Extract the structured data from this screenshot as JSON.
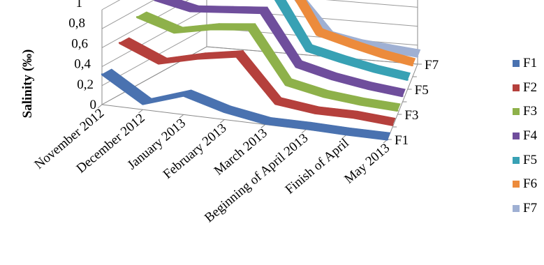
{
  "chart_data": {
    "type": "line",
    "style": "3d-ribbon",
    "ylabel": "Salinity (‰)",
    "categories": [
      "November 2012",
      "December 2012",
      "January 2013",
      "February 2013",
      "March 2013",
      "Beginning of April 2013",
      "Finish of April",
      "May 2013"
    ],
    "depth_labels": [
      "F1",
      "F3",
      "F5",
      "F7"
    ],
    "y_ticks": [
      "0",
      "0,2",
      "0,4",
      "0,6",
      "0,8",
      "1"
    ],
    "ylim": [
      0,
      1
    ],
    "series": [
      {
        "name": "F1",
        "color": "#4a72b0",
        "values": [
          0.32,
          0.06,
          0.2,
          0.08,
          0.01,
          0.01,
          0.0,
          0.0
        ]
      },
      {
        "name": "F2",
        "color": "#b5403c",
        "values": [
          0.55,
          0.38,
          0.48,
          0.55,
          0.1,
          0.05,
          0.05,
          0.02
        ]
      },
      {
        "name": "F3",
        "color": "#8eb14a",
        "values": [
          0.72,
          0.6,
          0.68,
          0.72,
          0.18,
          0.1,
          0.06,
          0.04
        ]
      },
      {
        "name": "F4",
        "color": "#6f4e9c",
        "values": [
          0.8,
          0.72,
          0.75,
          0.78,
          0.25,
          0.16,
          0.1,
          0.06
        ]
      },
      {
        "name": "F5",
        "color": "#38a1b4",
        "values": [
          0.92,
          0.82,
          0.88,
          0.85,
          0.3,
          0.22,
          0.15,
          0.1
        ]
      },
      {
        "name": "F6",
        "color": "#ec8b3c",
        "values": [
          0.98,
          0.88,
          0.9,
          0.88,
          0.35,
          0.26,
          0.18,
          0.12
        ]
      },
      {
        "name": "F7",
        "color": "#9fb0d3",
        "values": [
          0.93,
          0.8,
          0.98,
          0.55,
          0.2,
          0.14,
          0.11,
          0.08
        ]
      }
    ],
    "grid": true,
    "legend_position": "right"
  }
}
